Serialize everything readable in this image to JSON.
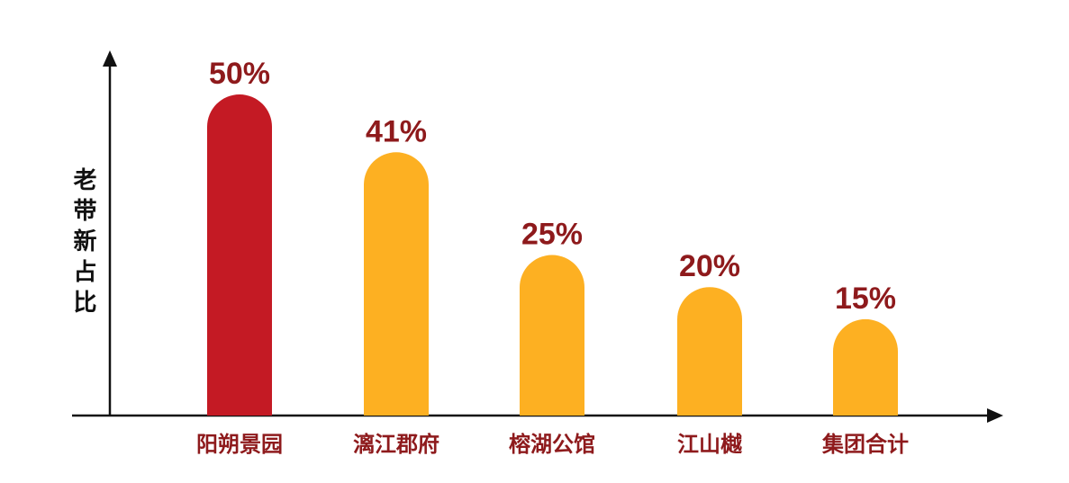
{
  "chart_data": {
    "type": "bar",
    "title": "",
    "xlabel": "",
    "ylabel": "老带新占比",
    "categories": [
      "阳朔景园",
      "漓江郡府",
      "榕湖公馆",
      "江山樾",
      "集团合计"
    ],
    "values": [
      50,
      41,
      25,
      20,
      15
    ],
    "value_labels": [
      "50%",
      "41%",
      "25%",
      "20%",
      "15%"
    ],
    "unit": "%",
    "ylim": [
      0,
      56
    ],
    "grid": false,
    "legend": "none",
    "colors": {
      "highlight_bar": "#C41A24",
      "bar": "#FDB022",
      "label": "#8E1A1C",
      "axis": "#111111"
    },
    "bar_colors": [
      "#C41A24",
      "#FDB022",
      "#FDB022",
      "#FDB022",
      "#FDB022"
    ]
  }
}
